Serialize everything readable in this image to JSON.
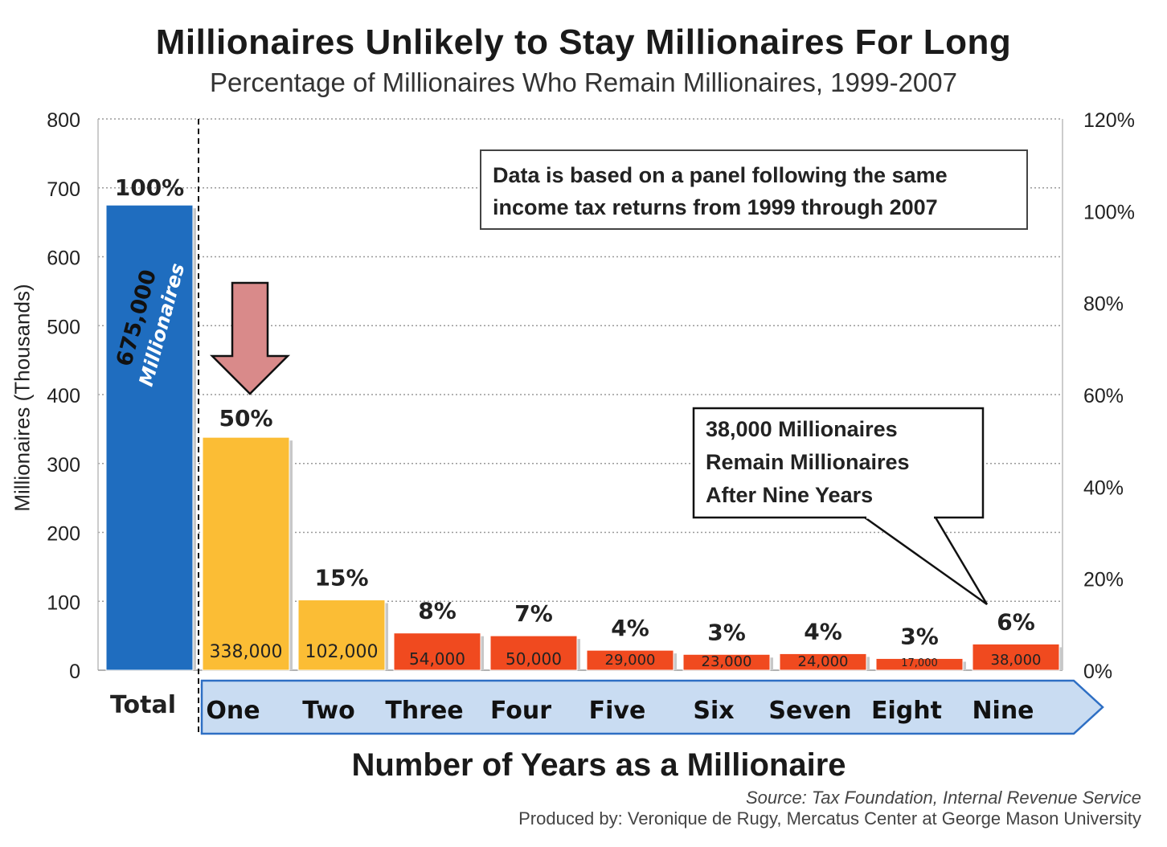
{
  "title": "Millionaires Unlikely to Stay Millionaires For Long",
  "subtitle": "Percentage of Millionaires Who Remain Millionaires, 1999-2007",
  "note": {
    "line1": "Data is based on a panel following the same",
    "line2": "income tax returns from 1999 through 2007"
  },
  "callout": {
    "line1": "38,000 Millionaires",
    "line2": "Remain Millionaires",
    "line3": "After Nine Years"
  },
  "footer": {
    "source": "Source: Tax Foundation, Internal Revenue Service",
    "produced_by": "Produced by: Veronique de Rugy, Mercatus Center at George Mason University"
  },
  "colors": {
    "total_bar": "#1f6dbf",
    "yellow_bar": "#fbbd35",
    "red_bar": "#f04a1f",
    "arrow_fill": "#d98a8a",
    "band_fill": "#c9dcf2",
    "band_stroke": "#2e6fc4"
  },
  "chart_data": {
    "type": "bar",
    "title": "Millionaires Unlikely to Stay Millionaires For Long",
    "subtitle": "Percentage of Millionaires Who Remain Millionaires, 1999-2007",
    "xlabel": "Number of Years as a Millionaire",
    "ylabel": "Millionaires (Thousands)",
    "ylim": [
      0,
      800
    ],
    "yticks": [
      0,
      100,
      200,
      300,
      400,
      500,
      600,
      700,
      800
    ],
    "y2lim": [
      0,
      1.2
    ],
    "y2ticks": [
      "0%",
      "20%",
      "40%",
      "60%",
      "80%",
      "100%",
      "120%"
    ],
    "grid": true,
    "categories": [
      "Total",
      "One",
      "Two",
      "Three",
      "Four",
      "Five",
      "Six",
      "Seven",
      "Eight",
      "Nine"
    ],
    "values": [
      675,
      338,
      102,
      54,
      50,
      29,
      23,
      24,
      17,
      38
    ],
    "value_labels": [
      "675,000",
      "338,000",
      "102,000",
      "54,000",
      "50,000",
      "29,000",
      "23,000",
      "24,000",
      "17,000",
      "38,000"
    ],
    "percent_labels": [
      "100%",
      "50%",
      "15%",
      "8%",
      "7%",
      "4%",
      "3%",
      "4%",
      "3%",
      "6%"
    ],
    "total_bar_label": "Millionaires"
  }
}
